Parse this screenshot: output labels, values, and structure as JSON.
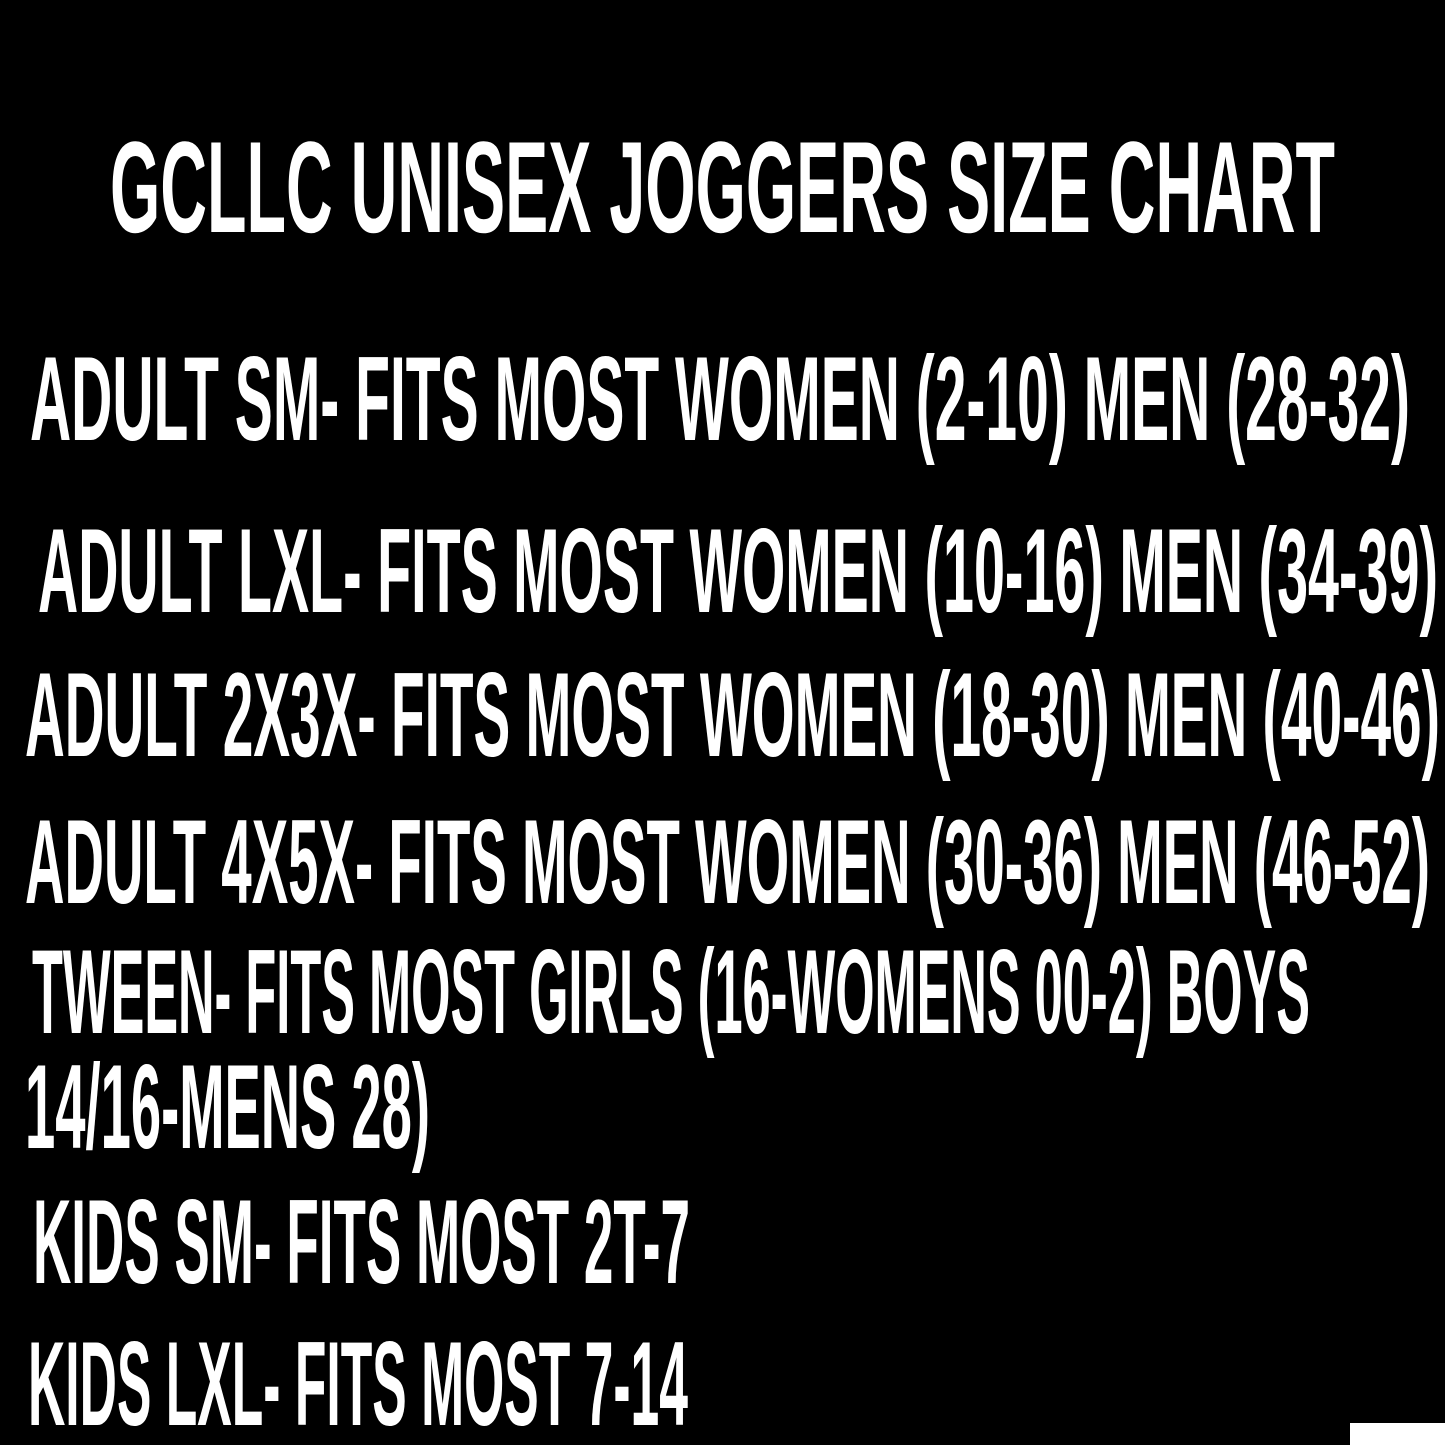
{
  "title": "GCLLC UNISEX JOGGERS SIZE CHART",
  "colors": {
    "background": "#000000",
    "text": "#ffffff"
  },
  "lines": [
    "ADULT SM- FITS MOST WOMEN (2-10) MEN (28-32)",
    "ADULT LXL- FITS MOST WOMEN (10-16) MEN (34-39)",
    "ADULT 2X3X- FITS MOST WOMEN (18-30) MEN (40-46)",
    "ADULT 4X5X- FITS MOST WOMEN (30-36) MEN (46-52)",
    "TWEEN- FITS MOST GIRLS (16-WOMENS 00-2) BOYS",
    "14/16-MENS 28)",
    "KIDS SM- FITS MOST 2T-7",
    "KIDS LXL- FITS MOST 7-14"
  ],
  "sizes_table": {
    "rows": [
      {
        "size": "ADULT SM",
        "fits": "FITS MOST WOMEN (2-10) MEN (28-32)"
      },
      {
        "size": "ADULT LXL",
        "fits": "FITS MOST WOMEN (10-16) MEN (34-39)"
      },
      {
        "size": "ADULT 2X3X",
        "fits": "FITS MOST WOMEN (18-30) MEN (40-46)"
      },
      {
        "size": "ADULT 4X5X",
        "fits": "FITS MOST WOMEN (30-36) MEN (46-52)"
      },
      {
        "size": "TWEEN",
        "fits": "FITS MOST GIRLS (16-WOMENS 00-2) BOYS 14/16-MENS 28)"
      },
      {
        "size": "KIDS SM",
        "fits": "FITS MOST 2T-7"
      },
      {
        "size": "KIDS LXL",
        "fits": "FITS MOST 7-14"
      }
    ]
  }
}
